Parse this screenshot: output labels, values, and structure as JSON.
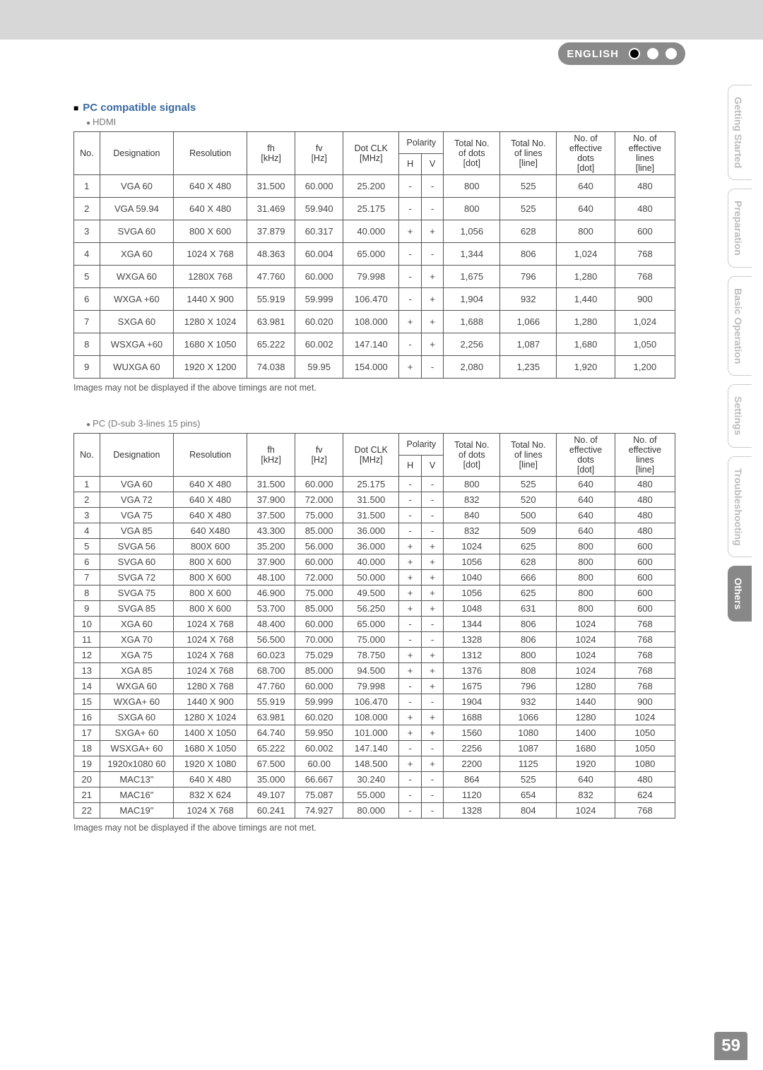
{
  "language_label": "ENGLISH",
  "page_number": "59",
  "section_title": "PC compatible signals",
  "hdmi_label": "HDMI",
  "pc_dsub_label": "PC (D-sub 3-lines 15 pins)",
  "note_text": "Images may not be displayed if the above timings are not met.",
  "tabs": [
    "Getting Started",
    "Preparation",
    "Basic Operation",
    "Settings",
    "Troubleshooting",
    "Others"
  ],
  "active_tab_index": 5,
  "headers": {
    "no": "No.",
    "designation": "Designation",
    "resolution": "Resolution",
    "fh": "fh\n[kHz]",
    "fv": "fv\n[Hz]",
    "dotclk": "Dot CLK\n[MHz]",
    "polarity": "Polarity",
    "pol_h": "H",
    "pol_v": "V",
    "total_dots": "Total No.\nof dots\n[dot]",
    "total_lines": "Total No.\nof lines\n[line]",
    "eff_dots": "No. of\neffective\ndots\n[dot]",
    "eff_lines": "No. of\neffective\nlines\n[line]"
  },
  "hdmi_rows": [
    [
      "1",
      "VGA 60",
      "640 X 480",
      "31.500",
      "60.000",
      "25.200",
      "-",
      "-",
      "800",
      "525",
      "640",
      "480"
    ],
    [
      "2",
      "VGA 59.94",
      "640 X 480",
      "31.469",
      "59.940",
      "25.175",
      "-",
      "-",
      "800",
      "525",
      "640",
      "480"
    ],
    [
      "3",
      "SVGA 60",
      "800 X 600",
      "37.879",
      "60.317",
      "40.000",
      "+",
      "+",
      "1,056",
      "628",
      "800",
      "600"
    ],
    [
      "4",
      "XGA 60",
      "1024 X 768",
      "48.363",
      "60.004",
      "65.000",
      "-",
      "-",
      "1,344",
      "806",
      "1,024",
      "768"
    ],
    [
      "5",
      "WXGA 60",
      "1280X 768",
      "47.760",
      "60.000",
      "79.998",
      "-",
      "+",
      "1,675",
      "796",
      "1,280",
      "768"
    ],
    [
      "6",
      "WXGA +60",
      "1440 X 900",
      "55.919",
      "59.999",
      "106.470",
      "-",
      "+",
      "1,904",
      "932",
      "1,440",
      "900"
    ],
    [
      "7",
      "SXGA 60",
      "1280 X 1024",
      "63.981",
      "60.020",
      "108.000",
      "+",
      "+",
      "1,688",
      "1,066",
      "1,280",
      "1,024"
    ],
    [
      "8",
      "WSXGA +60",
      "1680 X 1050",
      "65.222",
      "60.002",
      "147.140",
      "-",
      "+",
      "2,256",
      "1,087",
      "1,680",
      "1,050"
    ],
    [
      "9",
      "WUXGA 60",
      "1920 X 1200",
      "74.038",
      "59.95",
      "154.000",
      "+",
      "-",
      "2,080",
      "1,235",
      "1,920",
      "1,200"
    ]
  ],
  "pc_rows": [
    [
      "1",
      "VGA 60",
      "640 X 480",
      "31.500",
      "60.000",
      "25.175",
      "-",
      "-",
      "800",
      "525",
      "640",
      "480"
    ],
    [
      "2",
      "VGA 72",
      "640 X 480",
      "37.900",
      "72.000",
      "31.500",
      "-",
      "-",
      "832",
      "520",
      "640",
      "480"
    ],
    [
      "3",
      "VGA 75",
      "640 X 480",
      "37.500",
      "75.000",
      "31.500",
      "-",
      "-",
      "840",
      "500",
      "640",
      "480"
    ],
    [
      "4",
      "VGA 85",
      "640 X480",
      "43.300",
      "85.000",
      "36.000",
      "-",
      "-",
      "832",
      "509",
      "640",
      "480"
    ],
    [
      "5",
      "SVGA 56",
      "800X 600",
      "35.200",
      "56.000",
      "36.000",
      "+",
      "+",
      "1024",
      "625",
      "800",
      "600"
    ],
    [
      "6",
      "SVGA 60",
      "800 X 600",
      "37.900",
      "60.000",
      "40.000",
      "+",
      "+",
      "1056",
      "628",
      "800",
      "600"
    ],
    [
      "7",
      "SVGA 72",
      "800 X 600",
      "48.100",
      "72.000",
      "50.000",
      "+",
      "+",
      "1040",
      "666",
      "800",
      "600"
    ],
    [
      "8",
      "SVGA 75",
      "800 X 600",
      "46.900",
      "75.000",
      "49.500",
      "+",
      "+",
      "1056",
      "625",
      "800",
      "600"
    ],
    [
      "9",
      "SVGA 85",
      "800 X 600",
      "53.700",
      "85.000",
      "56.250",
      "+",
      "+",
      "1048",
      "631",
      "800",
      "600"
    ],
    [
      "10",
      "XGA 60",
      "1024 X 768",
      "48.400",
      "60.000",
      "65.000",
      "-",
      "-",
      "1344",
      "806",
      "1024",
      "768"
    ],
    [
      "11",
      "XGA 70",
      "1024 X 768",
      "56.500",
      "70.000",
      "75.000",
      "-",
      "-",
      "1328",
      "806",
      "1024",
      "768"
    ],
    [
      "12",
      "XGA 75",
      "1024 X 768",
      "60.023",
      "75.029",
      "78.750",
      "+",
      "+",
      "1312",
      "800",
      "1024",
      "768"
    ],
    [
      "13",
      "XGA 85",
      "1024 X 768",
      "68.700",
      "85.000",
      "94.500",
      "+",
      "+",
      "1376",
      "808",
      "1024",
      "768"
    ],
    [
      "14",
      "WXGA 60",
      "1280 X 768",
      "47.760",
      "60.000",
      "79.998",
      "-",
      "+",
      "1675",
      "796",
      "1280",
      "768"
    ],
    [
      "15",
      "WXGA+ 60",
      "1440 X 900",
      "55.919",
      "59.999",
      "106.470",
      "-",
      "-",
      "1904",
      "932",
      "1440",
      "900"
    ],
    [
      "16",
      "SXGA 60",
      "1280 X 1024",
      "63.981",
      "60.020",
      "108.000",
      "+",
      "+",
      "1688",
      "1066",
      "1280",
      "1024"
    ],
    [
      "17",
      "SXGA+ 60",
      "1400 X 1050",
      "64.740",
      "59.950",
      "101.000",
      "+",
      "+",
      "1560",
      "1080",
      "1400",
      "1050"
    ],
    [
      "18",
      "WSXGA+ 60",
      "1680 X 1050",
      "65.222",
      "60.002",
      "147.140",
      "-",
      "-",
      "2256",
      "1087",
      "1680",
      "1050"
    ],
    [
      "19",
      "1920x1080 60",
      "1920 X 1080",
      "67.500",
      "60.00",
      "148.500",
      "+",
      "+",
      "2200",
      "1125",
      "1920",
      "1080"
    ],
    [
      "20",
      "MAC13\"",
      "640 X 480",
      "35.000",
      "66.667",
      "30.240",
      "-",
      "-",
      "864",
      "525",
      "640",
      "480"
    ],
    [
      "21",
      "MAC16\"",
      "832 X 624",
      "49.107",
      "75.087",
      "55.000",
      "-",
      "-",
      "1120",
      "654",
      "832",
      "624"
    ],
    [
      "22",
      "MAC19\"",
      "1024 X 768",
      "60.241",
      "74.927",
      "80.000",
      "-",
      "-",
      "1328",
      "804",
      "1024",
      "768"
    ]
  ],
  "colwidths_pct": [
    4.3,
    12.3,
    12.2,
    8.0,
    8.0,
    9.3,
    3.7,
    3.7,
    9.4,
    9.4,
    9.7,
    10.0
  ]
}
